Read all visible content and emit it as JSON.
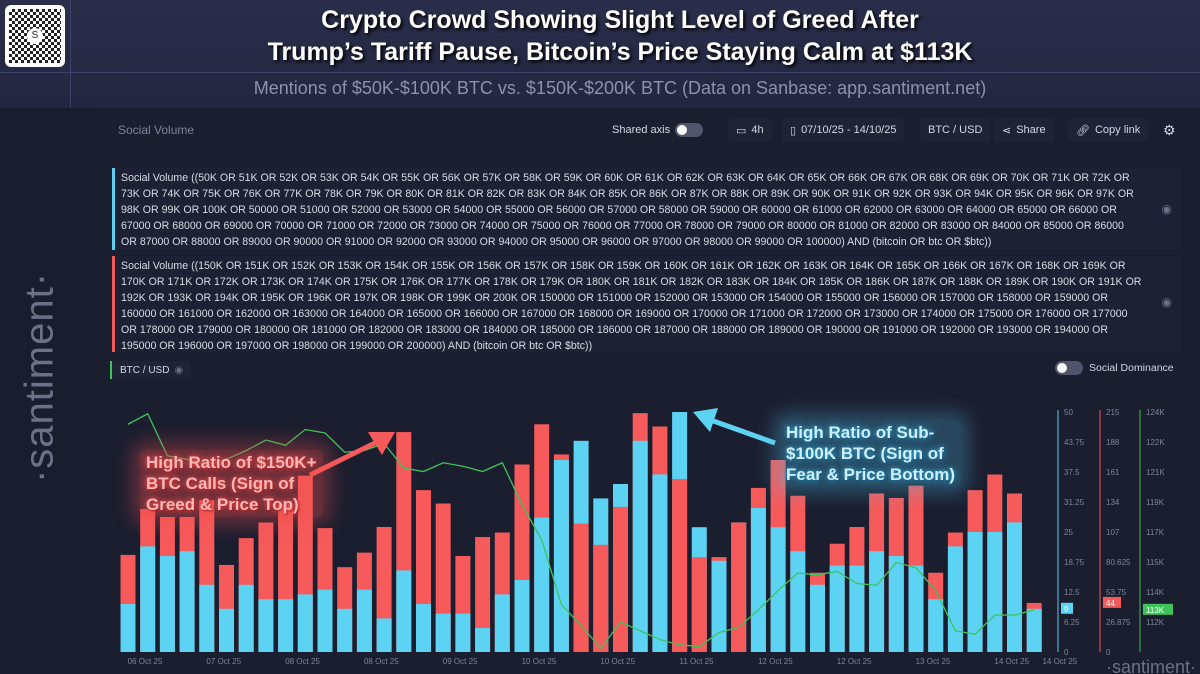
{
  "header": {
    "title_line1": "Crypto Crowd Showing Slight Level of Greed After",
    "title_line2": "Trump’s Tariff Pause, Bitcoin’s Price Staying Calm at $113K",
    "subtitle": "Mentions of $50K-$100K BTC vs. $150K-$200K BTC (Data on Sanbase: app.santiment.net)",
    "brand": "·santiment·",
    "qr_icon": "qr-code"
  },
  "toolbar": {
    "panel_label": "Social Volume",
    "shared_axis": "Shared axis",
    "shared_axis_on": false,
    "interval": "4h",
    "date_range": "07/10/25 - 14/10/25",
    "pair": "BTC / USD",
    "share": "Share",
    "copy_link": "Copy link"
  },
  "queries": [
    {
      "color": "#5dcff0",
      "text": "Social Volume ((50K OR 51K OR 52K OR 53K OR 54K OR 55K OR 56K OR 57K OR 58K OR 59K OR 60K OR 61K OR 62K OR 63K OR 64K OR 65K OR 66K OR 67K OR 68K OR 69K OR 70K OR 71K OR 72K OR 73K OR 74K OR 75K OR 76K OR 77K OR 78K OR 79K OR 80K OR 81K OR 82K OR 83K OR 84K OR 85K OR 86K OR 87K OR 88K OR 89K OR 90K OR 91K OR 92K OR 93K OR 94K OR 95K OR 96K OR 97K OR 98K OR 99K OR 100K OR 50000 OR 51000 OR 52000 OR 53000 OR 54000 OR 55000 OR 56000 OR 57000 OR 58000 OR 59000 OR 60000 OR 61000 OR 62000 OR 63000 OR 64000 OR 65000 OR 66000 OR 67000 OR 68000 OR 69000 OR 70000 OR 71000 OR 72000 OR 73000 OR 74000 OR 75000 OR 76000 OR 77000 OR 78000 OR 79000 OR 80000 OR 81000 OR 82000 OR 83000 OR 84000 OR 85000 OR 86000 OR 87000 OR 88000 OR 89000 OR 90000 OR 91000 OR 92000 OR 93000 OR 94000 OR 95000 OR 96000 OR 97000 OR 98000 OR 99000 OR 100000) AND (bitcoin OR btc OR $btc))"
    },
    {
      "color": "#f25b5b",
      "text": "Social Volume ((150K OR 151K OR 152K OR 153K OR 154K OR 155K OR 156K OR 157K OR 158K OR 159K OR 160K OR 161K OR 162K OR 163K OR 164K OR 165K OR 166K OR 167K OR 168K OR 169K OR 170K OR 171K OR 172K OR 173K OR 174K OR 175K OR 176K OR 177K OR 178K OR 179K OR 180K OR 181K OR 182K OR 183K OR 184K OR 185K OR 186K OR 187K OR 188K OR 189K OR 190K OR 191K OR 192K OR 193K OR 194K OR 195K OR 196K OR 197K OR 198K OR 199K OR 200K OR 150000 OR 151000 OR 152000 OR 153000 OR 154000 OR 155000 OR 156000 OR 157000 OR 158000 OR 159000 OR 160000 OR 161000 OR 162000 OR 163000 OR 164000 OR 165000 OR 166000 OR 167000 OR 168000 OR 169000 OR 170000 OR 171000 OR 172000 OR 173000 OR 174000 OR 175000 OR 176000 OR 177000 OR 178000 OR 179000 OR 180000 OR 181000 OR 182000 OR 183000 OR 184000 OR 185000 OR 186000 OR 187000 OR 188000 OR 189000 OR 190000 OR 191000 OR 192000 OR 193000 OR 194000 OR 195000 OR 196000 OR 197000 OR 198000 OR 199000 OR 200000) AND (bitcoin OR btc OR $btc))"
    }
  ],
  "btc_chip": {
    "label": "BTC / USD",
    "color": "#3ec45a"
  },
  "social_dominance": {
    "label": "Social Dominance",
    "on": false
  },
  "annotations": {
    "red": [
      "High Ratio of $150K+",
      "BTC Calls (Sign of",
      "Greed & Price Top)"
    ],
    "blue": [
      "High Ratio of Sub-",
      "$100K BTC (Sign of",
      "Fear & Price Bottom)"
    ]
  },
  "chart_data": {
    "type": "bar",
    "x_ticks": [
      "06 Oct 25",
      "07 Oct 25",
      "08 Oct 25",
      "08 Oct 25",
      "09 Oct 25",
      "10 Oct 25",
      "10 Oct 25",
      "11 Oct 25",
      "12 Oct 25",
      "12 Oct 25",
      "13 Oct 25",
      "14 Oct 25",
      "14 Oct 25"
    ],
    "series": [
      {
        "color": "#5dd3f3",
        "axis": "left",
        "ylim": [
          0,
          50
        ],
        "ticks": [
          "0",
          "6.25",
          "12.5",
          "18.75",
          "25",
          "31.25",
          "37.5",
          "43.75",
          "50"
        ],
        "last_label": "9",
        "values": [
          10,
          22,
          20,
          21,
          14,
          9,
          14,
          11,
          11,
          12,
          13,
          9,
          13,
          7,
          17,
          10,
          8,
          8,
          5,
          12,
          15,
          28,
          40,
          44,
          32,
          35,
          44,
          37,
          50,
          26,
          19,
          27,
          30,
          26,
          21,
          14,
          18,
          18,
          21,
          20,
          18,
          11,
          22,
          25,
          25,
          27,
          9
        ]
      },
      {
        "color": "#f65a5a",
        "axis": "middle",
        "ylim": [
          0,
          215
        ],
        "ticks": [
          "0",
          "26.875",
          "53.75",
          "80.625",
          "107",
          "134",
          "161",
          "188",
          "215"
        ],
        "last_label": "44",
        "values": [
          87,
          128,
          121,
          121,
          136,
          78,
          102,
          116,
          132,
          158,
          111,
          76,
          89,
          112,
          197,
          145,
          133,
          86,
          103,
          107,
          168,
          204,
          177,
          115,
          96,
          130,
          214,
          202,
          155,
          85,
          85,
          116,
          147,
          172,
          140,
          71,
          97,
          112,
          142,
          138,
          149,
          71,
          107,
          145,
          159,
          142,
          44
        ]
      },
      {
        "color": "#3ec45a",
        "type": "line",
        "axis": "right",
        "ylim": [
          110.29,
          124
        ],
        "ticks": [
          "",
          "112K",
          "114K",
          "115K",
          "117K",
          "119K",
          "121K",
          "122K",
          "124K"
        ],
        "last_label": "113K",
        "values": [
          123.3,
          123.9,
          121.5,
          121.3,
          121.0,
          121.3,
          121.8,
          122.4,
          122.1,
          123.0,
          122.8,
          121.7,
          121.8,
          122.2,
          120.8,
          120.6,
          121.1,
          120.9,
          120.6,
          121.1,
          118.7,
          116.7,
          113.0,
          111.8,
          110.5,
          112.0,
          111.5,
          111.0,
          110.7,
          110.6,
          111.4,
          111.7,
          112.7,
          113.8,
          114.8,
          114.7,
          114.9,
          114.2,
          114.1,
          115.4,
          115.1,
          113.8,
          111.5,
          111.3,
          112.4,
          112.4,
          112.7
        ]
      }
    ],
    "grid": false
  }
}
